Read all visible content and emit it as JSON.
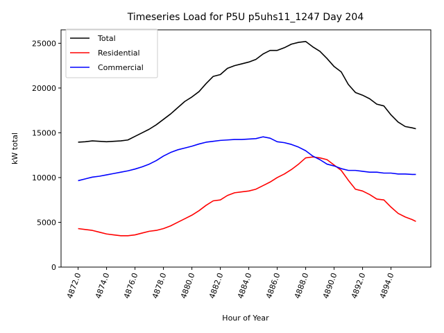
{
  "chart_data": {
    "type": "line",
    "title": "Timeseries Load for P5U p5uhs11_1247  Day 204",
    "xlabel": "Hour of Year",
    "ylabel": "kW total",
    "xlim": [
      4870.8,
      4896.8
    ],
    "ylim": [
      0,
      26500
    ],
    "xticks": [
      4872,
      4874,
      4876,
      4878,
      4880,
      4882,
      4884,
      4886,
      4888,
      4890,
      4892,
      4894
    ],
    "xtick_labels": [
      "4872.0",
      "4874.0",
      "4876.0",
      "4878.0",
      "4880.0",
      "4882.0",
      "4884.0",
      "4886.0",
      "4888.0",
      "4890.0",
      "4892.0",
      "4894.0"
    ],
    "yticks": [
      0,
      5000,
      10000,
      15000,
      20000,
      25000
    ],
    "ytick_labels": [
      "0",
      "5000",
      "10000",
      "15000",
      "20000",
      "25000"
    ],
    "legend_position": "top-left",
    "x": [
      4872.0,
      4872.5,
      4873.0,
      4873.5,
      4874.0,
      4874.5,
      4875.0,
      4875.5,
      4876.0,
      4876.5,
      4877.0,
      4877.5,
      4878.0,
      4878.5,
      4879.0,
      4879.5,
      4880.0,
      4880.5,
      4881.0,
      4881.5,
      4882.0,
      4882.5,
      4883.0,
      4883.5,
      4884.0,
      4884.5,
      4885.0,
      4885.5,
      4886.0,
      4886.5,
      4887.0,
      4887.5,
      4888.0,
      4888.5,
      4889.0,
      4889.5,
      4890.0,
      4890.5,
      4891.0,
      4891.5,
      4892.0,
      4892.5,
      4893.0,
      4893.5,
      4894.0,
      4894.5,
      4895.0,
      4895.5,
      4895.75
    ],
    "series": [
      {
        "name": "Total",
        "color": "#000000",
        "values": [
          13950,
          14000,
          14100,
          14050,
          14000,
          14050,
          14100,
          14200,
          14600,
          15000,
          15400,
          15900,
          16500,
          17100,
          17800,
          18500,
          19000,
          19600,
          20500,
          21300,
          21500,
          22200,
          22500,
          22700,
          22900,
          23200,
          23800,
          24200,
          24200,
          24500,
          24900,
          25100,
          25200,
          24600,
          24100,
          23300,
          22400,
          21800,
          20400,
          19500,
          19200,
          18800,
          18200,
          18000,
          17000,
          16200,
          15700,
          15550,
          15450
        ]
      },
      {
        "name": "Residential",
        "color": "#ff0000",
        "values": [
          4300,
          4200,
          4100,
          3900,
          3700,
          3600,
          3500,
          3500,
          3600,
          3800,
          4000,
          4100,
          4300,
          4600,
          5000,
          5400,
          5800,
          6300,
          6900,
          7400,
          7500,
          8000,
          8300,
          8400,
          8500,
          8700,
          9100,
          9500,
          10000,
          10400,
          10900,
          11500,
          12200,
          12300,
          12200,
          12000,
          11400,
          10800,
          9700,
          8700,
          8500,
          8100,
          7600,
          7500,
          6700,
          6000,
          5600,
          5300,
          5100
        ]
      },
      {
        "name": "Commercial",
        "color": "#0000ff",
        "values": [
          9650,
          9850,
          10050,
          10150,
          10300,
          10450,
          10600,
          10750,
          10950,
          11200,
          11500,
          11900,
          12400,
          12800,
          13100,
          13300,
          13500,
          13750,
          13950,
          14050,
          14150,
          14200,
          14250,
          14250,
          14300,
          14350,
          14550,
          14400,
          14000,
          13900,
          13700,
          13400,
          13000,
          12400,
          12000,
          11500,
          11300,
          11000,
          10800,
          10800,
          10700,
          10600,
          10600,
          10500,
          10500,
          10400,
          10400,
          10350,
          10350
        ]
      }
    ]
  }
}
